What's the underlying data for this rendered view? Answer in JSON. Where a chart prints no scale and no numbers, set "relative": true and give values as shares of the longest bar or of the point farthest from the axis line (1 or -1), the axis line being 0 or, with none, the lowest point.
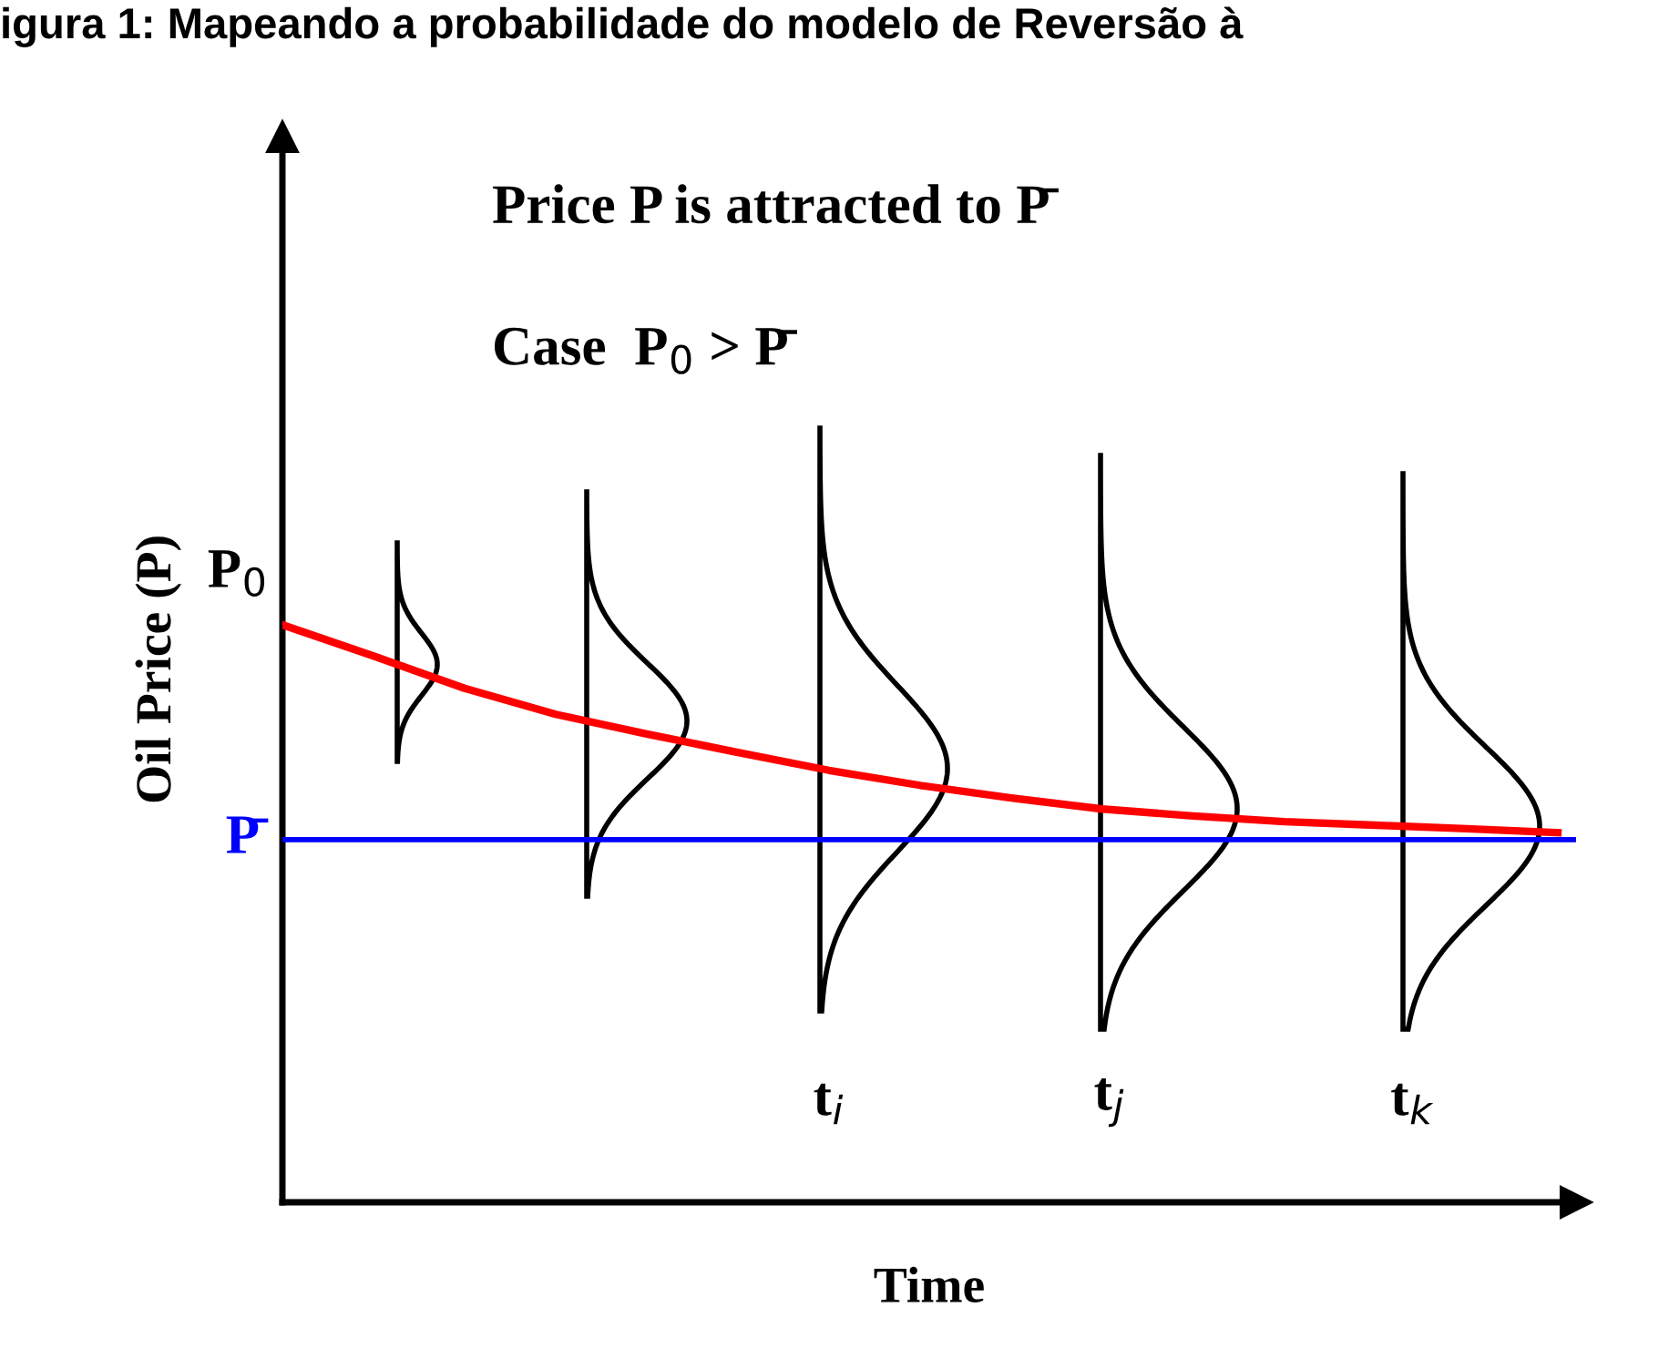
{
  "chart_data": {
    "type": "line",
    "relative": true,
    "title": "igura 1: Mapeando a probabilidade do modelo de Reversão à",
    "xlabel": "Time",
    "ylabel": "Oil Price (P)",
    "categories": [
      null,
      null,
      null,
      null,
      null,
      null,
      null,
      null,
      null,
      null,
      null,
      null,
      null,
      null,
      null
    ],
    "series": [
      {
        "color": "#ff0000",
        "values": [
          1.0,
          0.946,
          0.89,
          0.845,
          0.811,
          0.779,
          0.748,
          0.722,
          0.7,
          0.681,
          0.669,
          0.659,
          0.653,
          0.647,
          0.64
        ]
      }
    ],
    "ref_lines": [
      {
        "axis": "y",
        "value": 0.628,
        "label": "P̄",
        "color": "#0000ff"
      }
    ],
    "annotations": [
      "Price P is attracted to P̄",
      "Case  P$_{0}$ > P̄",
      "P$_{0}$",
      "t$_{i}$",
      "t$_{j}$",
      "t$_{k}$"
    ],
    "grid": false,
    "legend": false,
    "marker": "none",
    "line_style": "solid"
  }
}
